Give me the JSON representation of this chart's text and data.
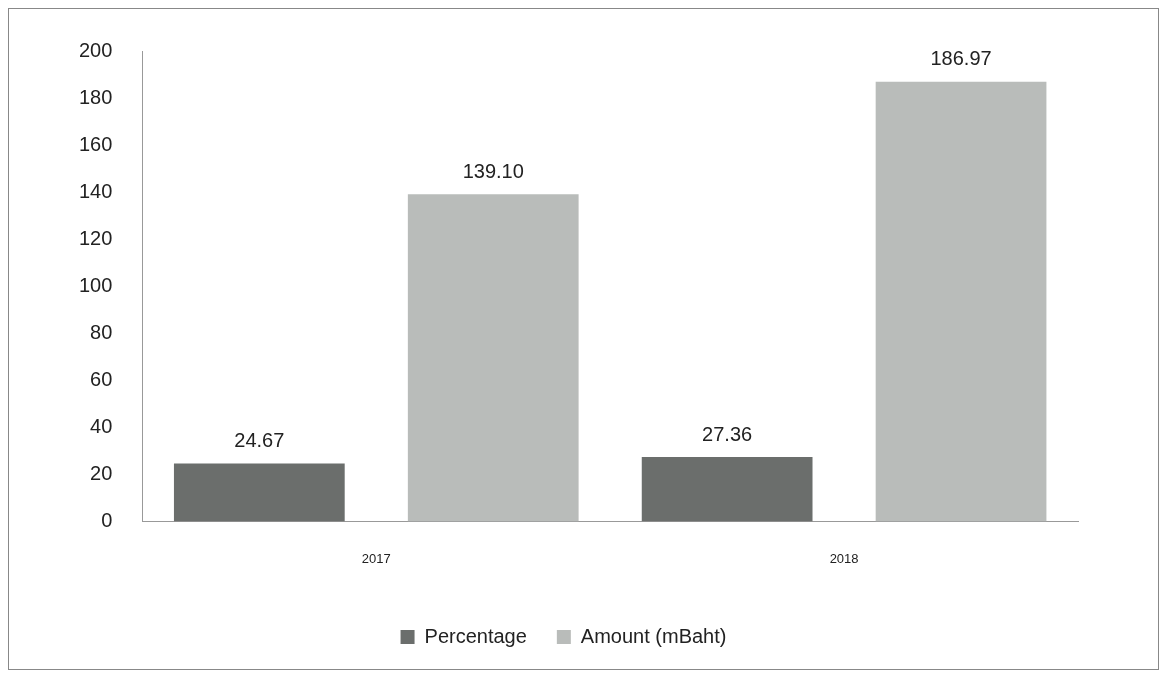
{
  "chart_data": {
    "type": "bar",
    "categories": [
      "2017",
      "2018"
    ],
    "series": [
      {
        "name": "Percentage",
        "color": "#6b6e6c",
        "values": [
          24.67,
          27.36
        ]
      },
      {
        "name": "Amount (mBaht)",
        "color": "#b9bcba",
        "values": [
          139.1,
          186.97
        ]
      }
    ],
    "value_labels": [
      [
        "24.67",
        "27.36"
      ],
      [
        "139.10",
        "186.97"
      ]
    ],
    "ylim": [
      0,
      200
    ],
    "yticks": [
      0,
      20,
      40,
      60,
      80,
      100,
      120,
      140,
      160,
      180,
      200
    ],
    "grid": false,
    "legend": "bottom"
  }
}
